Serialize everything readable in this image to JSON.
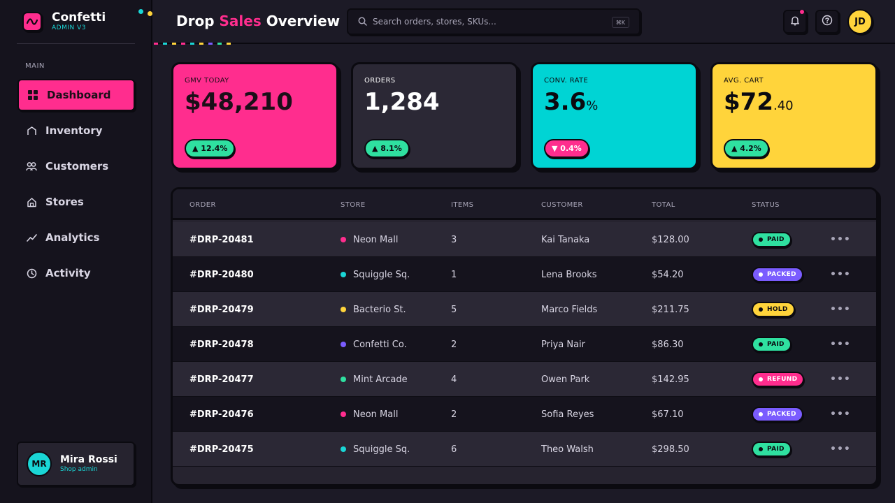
{
  "brand": {
    "name": "Confetti",
    "subtitle": "ADMIN V3"
  },
  "sidebar": {
    "section_label": "MAIN",
    "items": [
      {
        "label": "Dashboard",
        "icon": "grid-icon",
        "active": true
      },
      {
        "label": "Inventory",
        "icon": "box-icon",
        "active": false
      },
      {
        "label": "Customers",
        "icon": "users-icon",
        "active": false
      },
      {
        "label": "Stores",
        "icon": "store-icon",
        "active": false
      },
      {
        "label": "Analytics",
        "icon": "trend-icon",
        "active": false
      },
      {
        "label": "Activity",
        "icon": "clock-icon",
        "active": false
      }
    ],
    "user": {
      "initials": "MR",
      "name": "Mira Rossi",
      "role": "Shop admin"
    }
  },
  "header": {
    "title_part1": "Drop",
    "title_accent": "Sales",
    "title_part2": "Overview",
    "search_placeholder": "Search orders, stores, SKUs...",
    "search_shortcut": "⌘K",
    "avatar_initials": "JD"
  },
  "kpis": [
    {
      "label": "GMV TODAY",
      "value": "$48,210",
      "suffix": "",
      "delta": "▲ 12.4%",
      "direction": "up"
    },
    {
      "label": "ORDERS",
      "value": "1,284",
      "suffix": "",
      "delta": "▲ 8.1%",
      "direction": "up"
    },
    {
      "label": "CONV. RATE",
      "value": "3.6",
      "suffix": "%",
      "delta": "▼ 0.4%",
      "direction": "down"
    },
    {
      "label": "AVG. CART",
      "value": "$72",
      "suffix": ".40",
      "delta": "▲ 4.2%",
      "direction": "up"
    }
  ],
  "table": {
    "columns": [
      "ORDER",
      "STORE",
      "ITEMS",
      "CUSTOMER",
      "TOTAL",
      "STATUS"
    ],
    "rows": [
      {
        "order": "#DRP-20481",
        "store": "Neon Mall",
        "store_color": "#ff2d8e",
        "items": "3",
        "customer": "Kai Tanaka",
        "total": "$128.00",
        "status": "PAID"
      },
      {
        "order": "#DRP-20480",
        "store": "Squiggle Sq.",
        "store_color": "#1ad6d6",
        "items": "1",
        "customer": "Lena Brooks",
        "total": "$54.20",
        "status": "PACKED"
      },
      {
        "order": "#DRP-20479",
        "store": "Bacterio St.",
        "store_color": "#ffd43b",
        "items": "5",
        "customer": "Marco Fields",
        "total": "$211.75",
        "status": "HOLD"
      },
      {
        "order": "#DRP-20478",
        "store": "Confetti Co.",
        "store_color": "#7a5cff",
        "items": "2",
        "customer": "Priya Nair",
        "total": "$86.30",
        "status": "PAID"
      },
      {
        "order": "#DRP-20477",
        "store": "Mint Arcade",
        "store_color": "#2fe0a0",
        "items": "4",
        "customer": "Owen Park",
        "total": "$142.95",
        "status": "REFUND"
      },
      {
        "order": "#DRP-20476",
        "store": "Neon Mall",
        "store_color": "#ff2d8e",
        "items": "2",
        "customer": "Sofia Reyes",
        "total": "$67.10",
        "status": "PACKED"
      },
      {
        "order": "#DRP-20475",
        "store": "Squiggle Sq.",
        "store_color": "#1ad6d6",
        "items": "6",
        "customer": "Theo Walsh",
        "total": "$298.50",
        "status": "PAID"
      }
    ]
  },
  "status_colors": {
    "PAID": "#2fe0a0",
    "PACKED": "#7a5cff",
    "HOLD": "#ffd43b",
    "REFUND": "#ff2d8e"
  },
  "colors": {
    "accent": "#ff2d8e",
    "cyan": "#1ad6d6",
    "yellow": "#ffd43b",
    "green": "#2fe0a0",
    "purple": "#7a5cff",
    "card_dark": "#2b2835"
  }
}
